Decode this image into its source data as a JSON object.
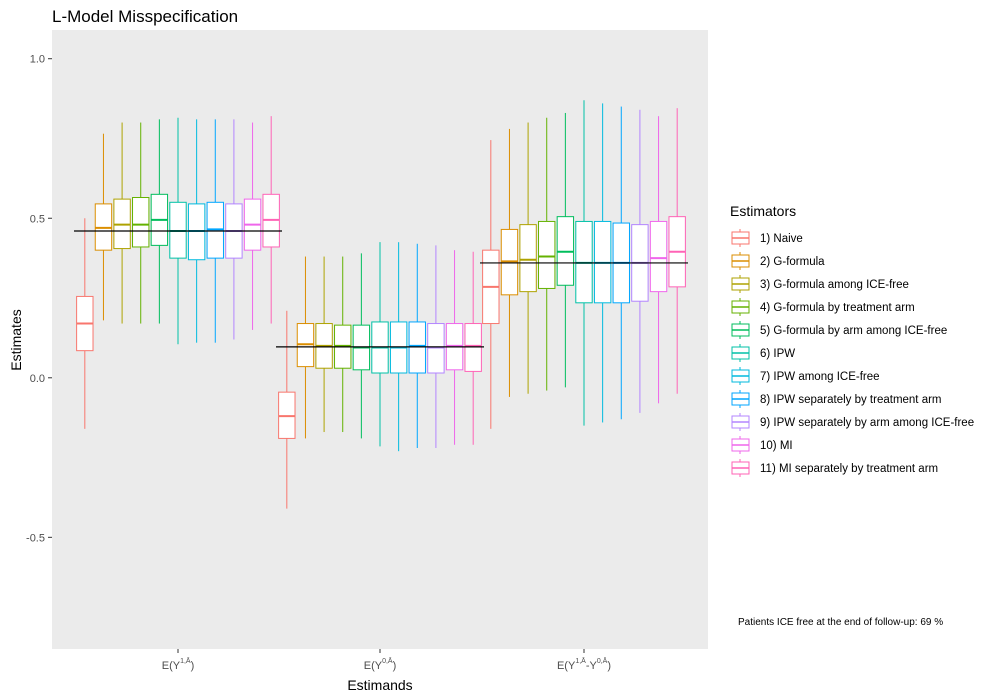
{
  "chart_data": {
    "type": "boxplot",
    "title": "L-Model Misspecification",
    "xlabel": "Estimands",
    "ylabel": "Estimates",
    "ylim": [
      -0.85,
      1.09
    ],
    "yticks": [
      -0.5,
      0.0,
      0.5,
      1.0
    ],
    "ytick_labels": [
      "-0.5",
      "0.0",
      "0.5",
      "1.0"
    ],
    "grid": false,
    "panel_background": "#ebebeb",
    "legend_title": "Estimators",
    "legend_position": "right",
    "categories": [
      {
        "base": "E(Y",
        "sup": "1,Ā",
        "tail": ")"
      },
      {
        "base": "E(Y",
        "sup": "0,Ā",
        "tail": ")"
      },
      {
        "base": "E(Y",
        "sup": "1,Ā",
        "mid": "-Y",
        "sup2": "0,Ā",
        "tail": ")"
      }
    ],
    "true_values": [
      0.46,
      0.097,
      0.36
    ],
    "series": [
      {
        "name": "1) Naive",
        "color": "#F8766D",
        "boxes": [
          {
            "whislo": -0.16,
            "q1": 0.085,
            "med": 0.17,
            "q3": 0.255,
            "whishi": 0.5
          },
          {
            "whislo": -0.41,
            "q1": -0.19,
            "med": -0.12,
            "q3": -0.045,
            "whishi": 0.21
          },
          {
            "whislo": -0.16,
            "q1": 0.17,
            "med": 0.285,
            "q3": 0.4,
            "whishi": 0.745
          }
        ]
      },
      {
        "name": "2) G-formula",
        "color": "#DB8E00",
        "boxes": [
          {
            "whislo": 0.18,
            "q1": 0.4,
            "med": 0.47,
            "q3": 0.545,
            "whishi": 0.765
          },
          {
            "whislo": -0.19,
            "q1": 0.035,
            "med": 0.105,
            "q3": 0.17,
            "whishi": 0.38
          },
          {
            "whislo": -0.06,
            "q1": 0.26,
            "med": 0.365,
            "q3": 0.465,
            "whishi": 0.78
          }
        ]
      },
      {
        "name": "3) G-formula among ICE-free",
        "color": "#AEA200",
        "boxes": [
          {
            "whislo": 0.17,
            "q1": 0.405,
            "med": 0.48,
            "q3": 0.56,
            "whishi": 0.8
          },
          {
            "whislo": -0.17,
            "q1": 0.03,
            "med": 0.1,
            "q3": 0.17,
            "whishi": 0.38
          },
          {
            "whislo": -0.05,
            "q1": 0.27,
            "med": 0.37,
            "q3": 0.48,
            "whishi": 0.8
          }
        ]
      },
      {
        "name": "4) G-formula by treatment arm",
        "color": "#64B200",
        "boxes": [
          {
            "whislo": 0.17,
            "q1": 0.41,
            "med": 0.48,
            "q3": 0.565,
            "whishi": 0.8
          },
          {
            "whislo": -0.17,
            "q1": 0.03,
            "med": 0.1,
            "q3": 0.165,
            "whishi": 0.38
          },
          {
            "whislo": -0.04,
            "q1": 0.28,
            "med": 0.38,
            "q3": 0.49,
            "whishi": 0.815
          }
        ]
      },
      {
        "name": "5) G-formula by arm among ICE-free",
        "color": "#00BD5C",
        "boxes": [
          {
            "whislo": 0.17,
            "q1": 0.415,
            "med": 0.495,
            "q3": 0.575,
            "whishi": 0.81
          },
          {
            "whislo": -0.19,
            "q1": 0.025,
            "med": 0.095,
            "q3": 0.165,
            "whishi": 0.39
          },
          {
            "whislo": -0.03,
            "q1": 0.29,
            "med": 0.395,
            "q3": 0.505,
            "whishi": 0.83
          }
        ]
      },
      {
        "name": "6) IPW",
        "color": "#00C1A7",
        "boxes": [
          {
            "whislo": 0.105,
            "q1": 0.375,
            "med": 0.46,
            "q3": 0.55,
            "whishi": 0.815
          },
          {
            "whislo": -0.215,
            "q1": 0.015,
            "med": 0.095,
            "q3": 0.175,
            "whishi": 0.425
          },
          {
            "whislo": -0.15,
            "q1": 0.235,
            "med": 0.36,
            "q3": 0.49,
            "whishi": 0.87
          }
        ]
      },
      {
        "name": "7) IPW among ICE-free",
        "color": "#00BADE",
        "boxes": [
          {
            "whislo": 0.11,
            "q1": 0.37,
            "med": 0.46,
            "q3": 0.545,
            "whishi": 0.81
          },
          {
            "whislo": -0.23,
            "q1": 0.015,
            "med": 0.095,
            "q3": 0.175,
            "whishi": 0.425
          },
          {
            "whislo": -0.14,
            "q1": 0.235,
            "med": 0.36,
            "q3": 0.49,
            "whishi": 0.86
          }
        ]
      },
      {
        "name": "8) IPW separately by treatment arm",
        "color": "#00A6FF",
        "boxes": [
          {
            "whislo": 0.11,
            "q1": 0.375,
            "med": 0.465,
            "q3": 0.55,
            "whishi": 0.81
          },
          {
            "whislo": -0.22,
            "q1": 0.015,
            "med": 0.1,
            "q3": 0.175,
            "whishi": 0.42
          },
          {
            "whislo": -0.13,
            "q1": 0.235,
            "med": 0.36,
            "q3": 0.485,
            "whishi": 0.85
          }
        ]
      },
      {
        "name": "9) IPW separately by arm among ICE-free",
        "color": "#B385FF",
        "boxes": [
          {
            "whislo": 0.12,
            "q1": 0.375,
            "med": 0.46,
            "q3": 0.545,
            "whishi": 0.81
          },
          {
            "whislo": -0.22,
            "q1": 0.015,
            "med": 0.095,
            "q3": 0.17,
            "whishi": 0.415
          },
          {
            "whislo": -0.11,
            "q1": 0.24,
            "med": 0.36,
            "q3": 0.48,
            "whishi": 0.84
          }
        ]
      },
      {
        "name": "10) MI",
        "color": "#EF67EB",
        "boxes": [
          {
            "whislo": 0.15,
            "q1": 0.4,
            "med": 0.48,
            "q3": 0.56,
            "whishi": 0.8
          },
          {
            "whislo": -0.21,
            "q1": 0.025,
            "med": 0.1,
            "q3": 0.17,
            "whishi": 0.4
          },
          {
            "whislo": -0.08,
            "q1": 0.27,
            "med": 0.375,
            "q3": 0.49,
            "whishi": 0.82
          }
        ]
      },
      {
        "name": "11) MI separately by treatment arm",
        "color": "#FF63B6",
        "boxes": [
          {
            "whislo": 0.17,
            "q1": 0.41,
            "med": 0.495,
            "q3": 0.575,
            "whishi": 0.82
          },
          {
            "whislo": -0.21,
            "q1": 0.02,
            "med": 0.1,
            "q3": 0.17,
            "whishi": 0.395
          },
          {
            "whislo": -0.05,
            "q1": 0.285,
            "med": 0.395,
            "q3": 0.505,
            "whishi": 0.845
          }
        ]
      }
    ],
    "annotation": "Patients ICE free at the end of follow-up: 69 %"
  }
}
